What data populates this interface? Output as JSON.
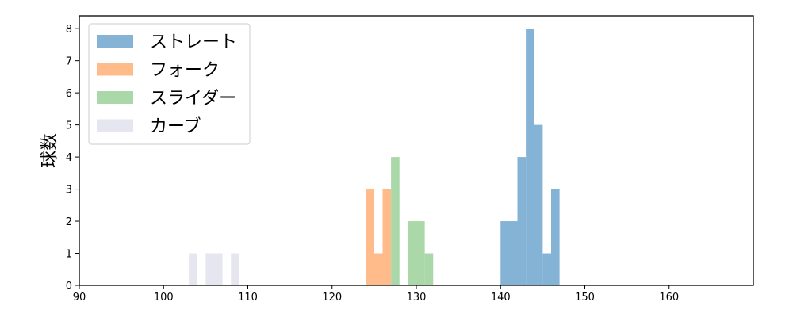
{
  "chart_data": {
    "type": "bar",
    "xlabel": "",
    "ylabel": "球数",
    "xlim": [
      90,
      170
    ],
    "ylim": [
      0,
      8.4
    ],
    "xticks": [
      90,
      100,
      110,
      120,
      130,
      140,
      150,
      160
    ],
    "yticks": [
      0,
      1,
      2,
      3,
      4,
      5,
      6,
      7,
      8
    ],
    "grid": false,
    "legend_position": "top-left",
    "series": [
      {
        "name": "ストレート",
        "color": "#84b3d6",
        "bins": [
          {
            "x0": 140,
            "x1": 142,
            "count": 2
          },
          {
            "x0": 142,
            "x1": 143,
            "count": 4
          },
          {
            "x0": 143,
            "x1": 144,
            "count": 8
          },
          {
            "x0": 144,
            "x1": 145,
            "count": 5
          },
          {
            "x0": 145,
            "x1": 146,
            "count": 1
          },
          {
            "x0": 146,
            "x1": 147,
            "count": 3
          }
        ]
      },
      {
        "name": "フォーク",
        "color": "#ffbc8a",
        "bins": [
          {
            "x0": 124,
            "x1": 125,
            "count": 3
          },
          {
            "x0": 125,
            "x1": 126,
            "count": 1
          },
          {
            "x0": 126,
            "x1": 127,
            "count": 3
          }
        ]
      },
      {
        "name": "スライダー",
        "color": "#aad8a8",
        "bins": [
          {
            "x0": 127,
            "x1": 128,
            "count": 4
          },
          {
            "x0": 129,
            "x1": 131,
            "count": 2
          },
          {
            "x0": 131,
            "x1": 132,
            "count": 1
          }
        ]
      },
      {
        "name": "カーブ",
        "color": "#e6e6f0",
        "bins": [
          {
            "x0": 103,
            "x1": 104,
            "count": 1
          },
          {
            "x0": 105,
            "x1": 107,
            "count": 1
          },
          {
            "x0": 108,
            "x1": 109,
            "count": 1
          }
        ]
      }
    ]
  }
}
